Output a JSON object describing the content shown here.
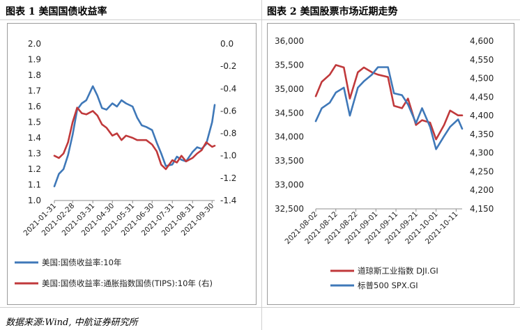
{
  "left_title": "图表 1 美国国债收益率",
  "right_title": "图表 2 美国股票市场近期走势",
  "source": "数据来源:Wind, 中航证券研究所",
  "chart_data": [
    {
      "type": "line",
      "x": [
        "2021-01-31",
        "2021-02-07",
        "2021-02-14",
        "2021-02-21",
        "2021-02-28",
        "2021-03-07",
        "2021-03-14",
        "2021-03-21",
        "2021-03-31",
        "2021-04-07",
        "2021-04-14",
        "2021-04-21",
        "2021-04-30",
        "2021-05-07",
        "2021-05-14",
        "2021-05-21",
        "2021-05-31",
        "2021-06-07",
        "2021-06-14",
        "2021-06-21",
        "2021-06-30",
        "2021-07-07",
        "2021-07-14",
        "2021-07-21",
        "2021-07-31",
        "2021-08-07",
        "2021-08-14",
        "2021-08-21",
        "2021-08-31",
        "2021-09-07",
        "2021-09-14",
        "2021-09-21",
        "2021-09-30",
        "2021-10-04"
      ],
      "x_tick_labels": [
        "2021-01-31",
        "2021-02-28",
        "2021-03-31",
        "2021-04-30",
        "2021-05-31",
        "2021-06-30",
        "2021-07-31",
        "2021-08-31",
        "2021-09-30"
      ],
      "y_left_ticks": [
        "1.0",
        "1.1",
        "1.2",
        "1.3",
        "1.4",
        "1.5",
        "1.6",
        "1.7",
        "1.8",
        "1.9",
        "2.0"
      ],
      "y_right_ticks": [
        "-1.4",
        "-1.2",
        "-1.0",
        "-0.8",
        "-0.6",
        "-0.4",
        "-0.2",
        "0.0"
      ],
      "ylim_left": [
        1.0,
        2.0
      ],
      "ylim_right": [
        -1.4,
        0.0
      ],
      "series": [
        {
          "name": "美国:国债收益率:10年",
          "axis": "left",
          "color": "#3f78b8",
          "values": [
            1.09,
            1.17,
            1.2,
            1.29,
            1.42,
            1.58,
            1.62,
            1.64,
            1.73,
            1.67,
            1.59,
            1.58,
            1.62,
            1.6,
            1.64,
            1.62,
            1.6,
            1.53,
            1.48,
            1.47,
            1.45,
            1.37,
            1.3,
            1.22,
            1.23,
            1.28,
            1.26,
            1.25,
            1.31,
            1.34,
            1.33,
            1.36,
            1.5,
            1.61
          ]
        },
        {
          "name": "美国:国债收益率:通胀指数国债(TIPS):10年 (右)",
          "axis": "right",
          "color": "#c0393b",
          "values": [
            -1.0,
            -1.02,
            -0.98,
            -0.88,
            -0.7,
            -0.57,
            -0.62,
            -0.63,
            -0.6,
            -0.64,
            -0.72,
            -0.75,
            -0.82,
            -0.8,
            -0.86,
            -0.82,
            -0.84,
            -0.86,
            -0.86,
            -0.86,
            -0.9,
            -0.96,
            -1.08,
            -1.12,
            -1.04,
            -1.06,
            -1.0,
            -1.05,
            -1.02,
            -0.98,
            -0.95,
            -0.88,
            -0.92,
            -0.91
          ]
        }
      ]
    },
    {
      "type": "line",
      "x": [
        "2021-08-02",
        "2021-08-05",
        "2021-08-09",
        "2021-08-12",
        "2021-08-16",
        "2021-08-19",
        "2021-08-23",
        "2021-08-26",
        "2021-08-30",
        "2021-09-02",
        "2021-09-07",
        "2021-09-10",
        "2021-09-14",
        "2021-09-17",
        "2021-09-21",
        "2021-09-24",
        "2021-09-28",
        "2021-10-01",
        "2021-10-05",
        "2021-10-08",
        "2021-10-12",
        "2021-10-14"
      ],
      "x_tick_labels": [
        "2021-08-02",
        "2021-08-12",
        "2021-08-22",
        "2021-09-01",
        "2021-09-11",
        "2021-09-21",
        "2021-10-01",
        "2021-10-11"
      ],
      "y_left_ticks": [
        "32,500",
        "33,000",
        "33,500",
        "34,000",
        "34,500",
        "35,000",
        "35,500",
        "36,000"
      ],
      "y_right_ticks": [
        "4,150",
        "4,200",
        "4,250",
        "4,300",
        "4,350",
        "4,400",
        "4,450",
        "4,500",
        "4,550",
        "4,600"
      ],
      "ylim_left": [
        32500,
        36000
      ],
      "ylim_right": [
        4150,
        4600
      ],
      "series": [
        {
          "name": "道琼斯工业指数 DJI.GI",
          "axis": "left",
          "color": "#c0393b",
          "values": [
            34850,
            35150,
            35300,
            35500,
            35450,
            34800,
            35350,
            35450,
            35350,
            35300,
            35250,
            34650,
            34600,
            34800,
            34250,
            34350,
            34300,
            33950,
            34250,
            34550,
            34450,
            34450
          ]
        },
        {
          "name": "标普500 SPX.GI",
          "axis": "right",
          "color": "#3f78b8",
          "values": [
            4385,
            4420,
            4435,
            4462,
            4475,
            4400,
            4475,
            4492,
            4510,
            4530,
            4530,
            4460,
            4455,
            4430,
            4380,
            4420,
            4370,
            4310,
            4345,
            4370,
            4390,
            4365
          ]
        }
      ]
    }
  ]
}
